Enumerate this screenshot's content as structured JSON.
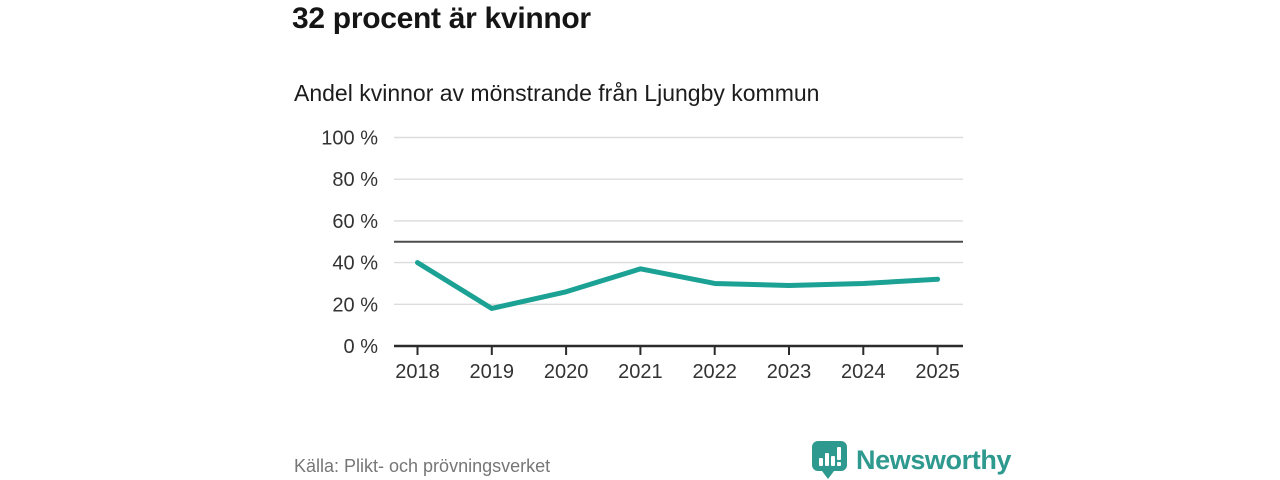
{
  "header": {
    "title": "32 procent är kvinnor",
    "subtitle": "Andel kvinnor av mönstrande från Ljungby kommun"
  },
  "footer": {
    "source": "Källa: Plikt- och prövningsverket",
    "brand": "Newsworthy"
  },
  "colors": {
    "line": "#1ba294",
    "reference_line": "#4d4d4d",
    "grid": "#dcdcdc",
    "axis": "#2b2b2b",
    "tick_text": "#333333",
    "brand": "#2e998e",
    "source_text": "#767676"
  },
  "chart_data": {
    "type": "line",
    "title": "32 procent är kvinnor",
    "subtitle": "Andel kvinnor av mönstrande från Ljungby kommun",
    "x": [
      2018,
      2019,
      2020,
      2021,
      2022,
      2023,
      2024,
      2025
    ],
    "values": [
      40,
      18,
      26,
      37,
      30,
      29,
      30,
      32
    ],
    "unit": "%",
    "ylim": [
      0,
      100
    ],
    "yticks": [
      0,
      20,
      40,
      60,
      80,
      100
    ],
    "ytick_format": "{v} %",
    "reference_line_y": 50,
    "grid": true,
    "legend": "none",
    "source": "Källa: Plikt- och prövningsverket"
  }
}
